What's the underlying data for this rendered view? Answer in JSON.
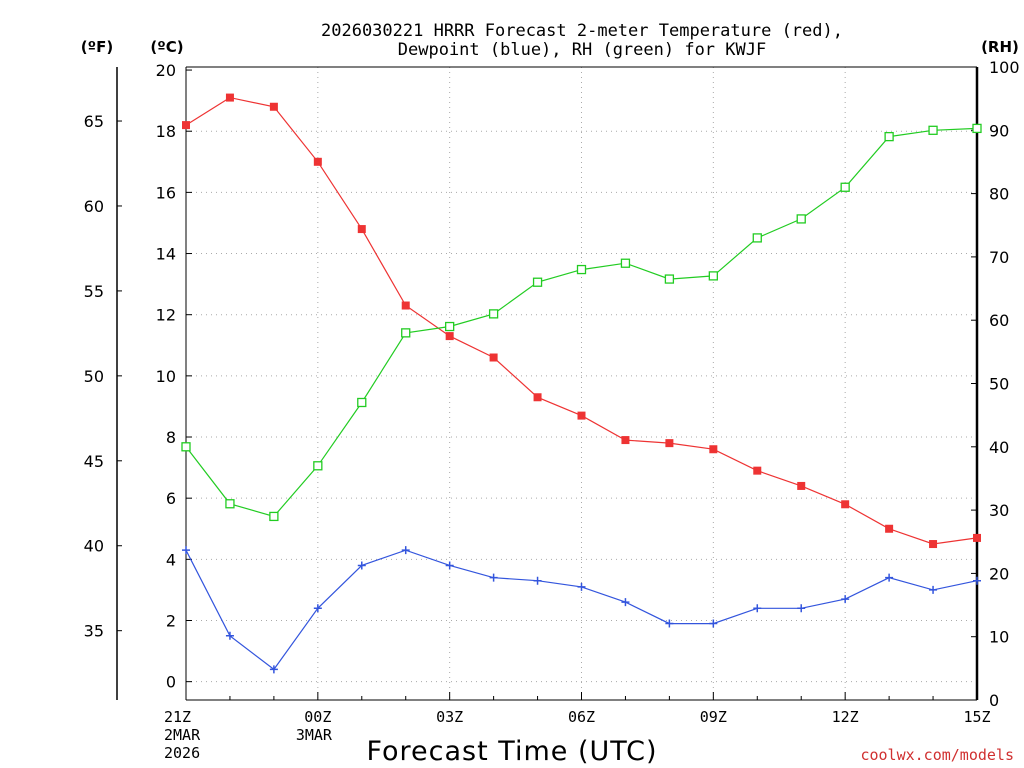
{
  "chart_data": {
    "type": "line",
    "title": [
      "2026030221 HRRR Forecast 2-meter Temperature (red),",
      "Dewpoint (blue), RH (green) for KWJF"
    ],
    "xlabel": "Forecast Time (UTC)",
    "credit": "coolwx.com/models",
    "left_unit_f": "(ºF)",
    "left_unit_c": "(ºC)",
    "right_unit": "(RH)",
    "x_hours": [
      0,
      1,
      2,
      3,
      4,
      5,
      6,
      7,
      8,
      9,
      10,
      11,
      12,
      13,
      14,
      15,
      16,
      17,
      18
    ],
    "xlim": [
      0,
      18
    ],
    "ylim_c": [
      -0.6,
      20.1
    ],
    "ylim_rh": [
      0,
      100
    ],
    "yticks_c": [
      0,
      2,
      4,
      6,
      8,
      10,
      12,
      14,
      16,
      18,
      20
    ],
    "yticks_f": [
      35,
      40,
      45,
      50,
      55,
      60,
      65
    ],
    "yticks_rh": [
      0,
      10,
      20,
      30,
      40,
      50,
      60,
      70,
      80,
      90,
      100
    ],
    "xticks": [
      {
        "hour": 0,
        "lines": [
          "21Z",
          "2MAR",
          "2026"
        ]
      },
      {
        "hour": 3,
        "lines": [
          "00Z",
          "3MAR"
        ]
      },
      {
        "hour": 6,
        "lines": [
          "03Z"
        ]
      },
      {
        "hour": 9,
        "lines": [
          "06Z"
        ]
      },
      {
        "hour": 12,
        "lines": [
          "09Z"
        ]
      },
      {
        "hour": 15,
        "lines": [
          "12Z"
        ]
      },
      {
        "hour": 18,
        "lines": [
          "15Z"
        ]
      }
    ],
    "series": [
      {
        "name": "Temperature",
        "axis": "c",
        "color": "#ee3333",
        "marker": "filled-square",
        "values": [
          18.2,
          19.1,
          18.8,
          17.0,
          14.8,
          12.3,
          11.3,
          10.6,
          9.3,
          8.7,
          7.9,
          7.8,
          7.6,
          6.9,
          6.4,
          5.8,
          5.0,
          4.5,
          4.7
        ]
      },
      {
        "name": "Dewpoint",
        "axis": "c",
        "color": "#3355dd",
        "marker": "plus",
        "values": [
          4.3,
          1.5,
          0.4,
          2.4,
          3.8,
          4.3,
          3.8,
          3.4,
          3.3,
          3.1,
          2.6,
          1.9,
          1.9,
          2.4,
          2.4,
          2.7,
          3.4,
          3.0,
          3.3
        ]
      },
      {
        "name": "RH",
        "axis": "rh",
        "color": "#22cc22",
        "marker": "open-square",
        "values": [
          40,
          31,
          29,
          37,
          47,
          58,
          59,
          61,
          66,
          68,
          69,
          66.5,
          67,
          73,
          76,
          81,
          89,
          90,
          90.3
        ]
      }
    ]
  }
}
